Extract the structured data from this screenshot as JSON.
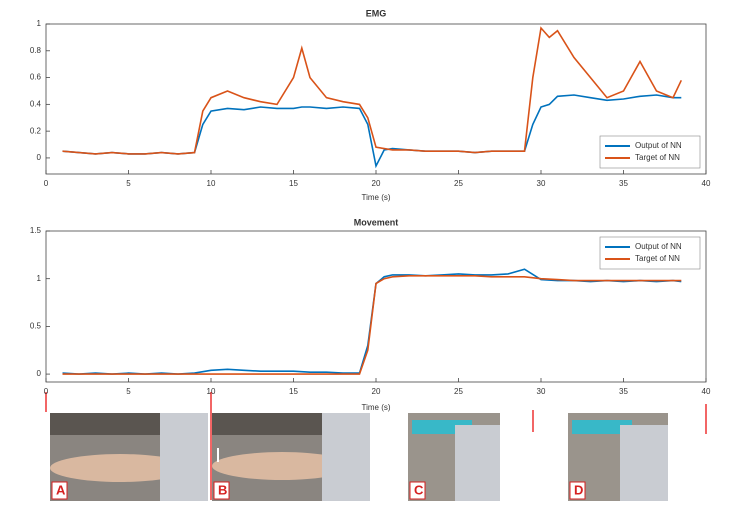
{
  "chart_data": [
    {
      "type": "line",
      "title": "EMG",
      "x_label": "Time (s)",
      "x": [
        1,
        2,
        3,
        4,
        5,
        6,
        7,
        8,
        9,
        9.5,
        10,
        11,
        12,
        13,
        14,
        15,
        15.5,
        16,
        17,
        18,
        19,
        19.5,
        20,
        20.5,
        21,
        22,
        23,
        24,
        25,
        26,
        27,
        28,
        29,
        29.5,
        30,
        30.5,
        31,
        32,
        33,
        34,
        35,
        36,
        37,
        38,
        38.5
      ],
      "series": [
        {
          "name": "Output of NN",
          "color": "#0072bd",
          "values": [
            0.05,
            0.04,
            0.03,
            0.04,
            0.03,
            0.03,
            0.04,
            0.03,
            0.04,
            0.25,
            0.35,
            0.37,
            0.36,
            0.38,
            0.37,
            0.37,
            0.38,
            0.38,
            0.37,
            0.38,
            0.37,
            0.25,
            -0.06,
            0.06,
            0.07,
            0.06,
            0.05,
            0.05,
            0.05,
            0.04,
            0.05,
            0.05,
            0.05,
            0.25,
            0.38,
            0.4,
            0.46,
            0.47,
            0.45,
            0.43,
            0.44,
            0.46,
            0.47,
            0.45,
            0.45
          ]
        },
        {
          "name": "Target of NN",
          "color": "#d95319",
          "values": [
            0.05,
            0.04,
            0.03,
            0.04,
            0.03,
            0.03,
            0.04,
            0.03,
            0.04,
            0.35,
            0.45,
            0.5,
            0.45,
            0.42,
            0.4,
            0.6,
            0.82,
            0.6,
            0.45,
            0.42,
            0.4,
            0.3,
            0.08,
            0.07,
            0.06,
            0.06,
            0.05,
            0.05,
            0.05,
            0.04,
            0.05,
            0.05,
            0.05,
            0.6,
            0.97,
            0.9,
            0.95,
            0.75,
            0.6,
            0.45,
            0.5,
            0.72,
            0.5,
            0.45,
            0.58
          ]
        }
      ],
      "xlim": [
        0,
        40
      ],
      "xticks": [
        0,
        5,
        10,
        15,
        20,
        25,
        30,
        35,
        40
      ],
      "ylim": [
        -0.12,
        1.0
      ],
      "yticks": [
        0,
        0.2,
        0.4,
        0.6,
        0.8,
        1
      ],
      "legend": "lower right"
    },
    {
      "type": "line",
      "title": "Movement",
      "x_label": "Time (s)",
      "x": [
        1,
        2,
        3,
        4,
        5,
        6,
        7,
        8,
        9,
        10,
        11,
        12,
        13,
        14,
        15,
        16,
        17,
        18,
        19,
        19.5,
        20,
        20.5,
        21,
        22,
        23,
        24,
        25,
        26,
        27,
        28,
        29,
        30,
        31,
        32,
        33,
        34,
        35,
        36,
        37,
        38,
        38.5
      ],
      "series": [
        {
          "name": "Output of NN",
          "color": "#0072bd",
          "values": [
            0.01,
            0.0,
            0.01,
            0.0,
            0.01,
            0.0,
            0.01,
            0.0,
            0.01,
            0.04,
            0.05,
            0.04,
            0.03,
            0.03,
            0.03,
            0.02,
            0.02,
            0.01,
            0.01,
            0.3,
            0.95,
            1.02,
            1.04,
            1.04,
            1.03,
            1.04,
            1.05,
            1.04,
            1.04,
            1.05,
            1.1,
            0.99,
            0.98,
            0.98,
            0.97,
            0.98,
            0.97,
            0.98,
            0.97,
            0.98,
            0.97
          ]
        },
        {
          "name": "Target of NN",
          "color": "#d95319",
          "values": [
            0,
            0,
            0,
            0,
            0,
            0,
            0,
            0,
            0,
            0,
            0,
            0,
            0,
            0,
            0,
            0,
            0,
            0,
            0,
            0.25,
            0.95,
            1.0,
            1.02,
            1.03,
            1.03,
            1.03,
            1.03,
            1.03,
            1.02,
            1.02,
            1.02,
            1.0,
            0.99,
            0.98,
            0.98,
            0.98,
            0.98,
            0.98,
            0.98,
            0.98,
            0.98
          ]
        }
      ],
      "xlim": [
        0,
        40
      ],
      "xticks": [
        0,
        5,
        10,
        15,
        20,
        25,
        30,
        35,
        40
      ],
      "ylim": [
        -0.083,
        1.5
      ],
      "yticks": [
        0,
        0.5,
        1,
        1.5
      ],
      "legend": "upper right"
    }
  ],
  "panels": {
    "labels": [
      "A",
      "B",
      "C",
      "D"
    ]
  }
}
